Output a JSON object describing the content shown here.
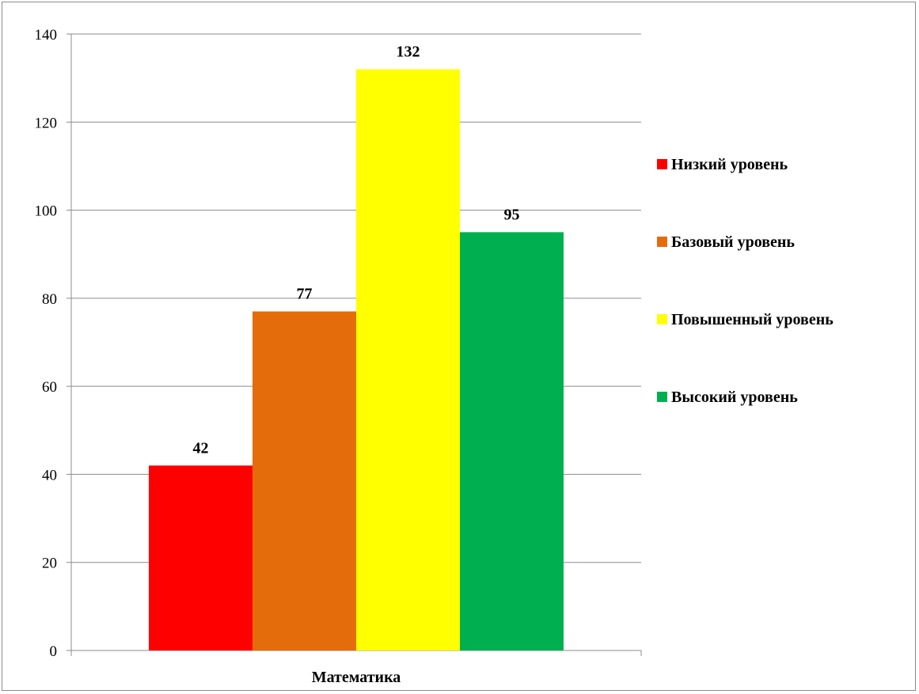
{
  "chart_data": {
    "type": "bar",
    "categories": [
      "Математика"
    ],
    "series": [
      {
        "name": "Низкий уровень",
        "values": [
          42
        ],
        "color": "#ff0000"
      },
      {
        "name": "Базовый уровень",
        "values": [
          77
        ],
        "color": "#e46c0a"
      },
      {
        "name": "Повышенный уровень",
        "values": [
          132
        ],
        "color": "#ffff00"
      },
      {
        "name": "Высокий уровень",
        "values": [
          95
        ],
        "color": "#00b050"
      }
    ],
    "ylim": [
      0,
      140
    ],
    "yticks": [
      0,
      20,
      40,
      60,
      80,
      100,
      120,
      140
    ],
    "grid": true,
    "legend_position": "right",
    "data_labels": true
  }
}
